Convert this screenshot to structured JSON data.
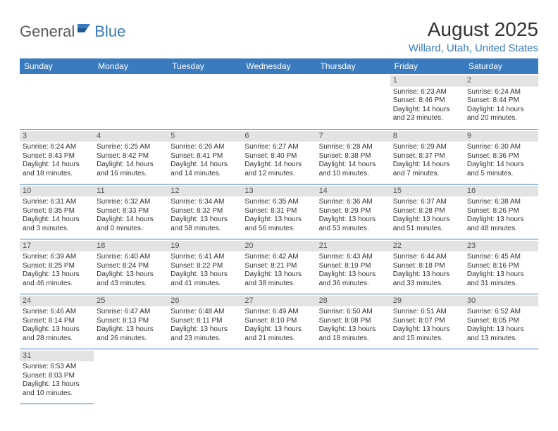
{
  "brand": {
    "part1": "General",
    "part2": "Blue"
  },
  "title": "August 2025",
  "location": "Willard, Utah, United States",
  "colors": {
    "header_bg": "#3a7bbf",
    "header_fg": "#ffffff",
    "daynum_bg": "#e3e3e3",
    "text": "#333333",
    "rule": "#3a7bbf",
    "logo_gray": "#5a5a5a",
    "logo_blue": "#3a7bbf"
  },
  "weekdays": [
    "Sunday",
    "Monday",
    "Tuesday",
    "Wednesday",
    "Thursday",
    "Friday",
    "Saturday"
  ],
  "first_weekday_index": 5,
  "days": [
    {
      "n": "1",
      "sunrise": "6:23 AM",
      "sunset": "8:46 PM",
      "daylight": "14 hours and 23 minutes."
    },
    {
      "n": "2",
      "sunrise": "6:24 AM",
      "sunset": "8:44 PM",
      "daylight": "14 hours and 20 minutes."
    },
    {
      "n": "3",
      "sunrise": "6:24 AM",
      "sunset": "8:43 PM",
      "daylight": "14 hours and 18 minutes."
    },
    {
      "n": "4",
      "sunrise": "6:25 AM",
      "sunset": "8:42 PM",
      "daylight": "14 hours and 16 minutes."
    },
    {
      "n": "5",
      "sunrise": "6:26 AM",
      "sunset": "8:41 PM",
      "daylight": "14 hours and 14 minutes."
    },
    {
      "n": "6",
      "sunrise": "6:27 AM",
      "sunset": "8:40 PM",
      "daylight": "14 hours and 12 minutes."
    },
    {
      "n": "7",
      "sunrise": "6:28 AM",
      "sunset": "8:38 PM",
      "daylight": "14 hours and 10 minutes."
    },
    {
      "n": "8",
      "sunrise": "6:29 AM",
      "sunset": "8:37 PM",
      "daylight": "14 hours and 7 minutes."
    },
    {
      "n": "9",
      "sunrise": "6:30 AM",
      "sunset": "8:36 PM",
      "daylight": "14 hours and 5 minutes."
    },
    {
      "n": "10",
      "sunrise": "6:31 AM",
      "sunset": "8:35 PM",
      "daylight": "14 hours and 3 minutes."
    },
    {
      "n": "11",
      "sunrise": "6:32 AM",
      "sunset": "8:33 PM",
      "daylight": "14 hours and 0 minutes."
    },
    {
      "n": "12",
      "sunrise": "6:34 AM",
      "sunset": "8:32 PM",
      "daylight": "13 hours and 58 minutes."
    },
    {
      "n": "13",
      "sunrise": "6:35 AM",
      "sunset": "8:31 PM",
      "daylight": "13 hours and 56 minutes."
    },
    {
      "n": "14",
      "sunrise": "6:36 AM",
      "sunset": "8:29 PM",
      "daylight": "13 hours and 53 minutes."
    },
    {
      "n": "15",
      "sunrise": "6:37 AM",
      "sunset": "8:28 PM",
      "daylight": "13 hours and 51 minutes."
    },
    {
      "n": "16",
      "sunrise": "6:38 AM",
      "sunset": "8:26 PM",
      "daylight": "13 hours and 48 minutes."
    },
    {
      "n": "17",
      "sunrise": "6:39 AM",
      "sunset": "8:25 PM",
      "daylight": "13 hours and 46 minutes."
    },
    {
      "n": "18",
      "sunrise": "6:40 AM",
      "sunset": "8:24 PM",
      "daylight": "13 hours and 43 minutes."
    },
    {
      "n": "19",
      "sunrise": "6:41 AM",
      "sunset": "8:22 PM",
      "daylight": "13 hours and 41 minutes."
    },
    {
      "n": "20",
      "sunrise": "6:42 AM",
      "sunset": "8:21 PM",
      "daylight": "13 hours and 38 minutes."
    },
    {
      "n": "21",
      "sunrise": "6:43 AM",
      "sunset": "8:19 PM",
      "daylight": "13 hours and 36 minutes."
    },
    {
      "n": "22",
      "sunrise": "6:44 AM",
      "sunset": "8:18 PM",
      "daylight": "13 hours and 33 minutes."
    },
    {
      "n": "23",
      "sunrise": "6:45 AM",
      "sunset": "8:16 PM",
      "daylight": "13 hours and 31 minutes."
    },
    {
      "n": "24",
      "sunrise": "6:46 AM",
      "sunset": "8:14 PM",
      "daylight": "13 hours and 28 minutes."
    },
    {
      "n": "25",
      "sunrise": "6:47 AM",
      "sunset": "8:13 PM",
      "daylight": "13 hours and 26 minutes."
    },
    {
      "n": "26",
      "sunrise": "6:48 AM",
      "sunset": "8:11 PM",
      "daylight": "13 hours and 23 minutes."
    },
    {
      "n": "27",
      "sunrise": "6:49 AM",
      "sunset": "8:10 PM",
      "daylight": "13 hours and 21 minutes."
    },
    {
      "n": "28",
      "sunrise": "6:50 AM",
      "sunset": "8:08 PM",
      "daylight": "13 hours and 18 minutes."
    },
    {
      "n": "29",
      "sunrise": "6:51 AM",
      "sunset": "8:07 PM",
      "daylight": "13 hours and 15 minutes."
    },
    {
      "n": "30",
      "sunrise": "6:52 AM",
      "sunset": "8:05 PM",
      "daylight": "13 hours and 13 minutes."
    },
    {
      "n": "31",
      "sunrise": "6:53 AM",
      "sunset": "8:03 PM",
      "daylight": "13 hours and 10 minutes."
    }
  ],
  "labels": {
    "sunrise": "Sunrise:",
    "sunset": "Sunset:",
    "daylight": "Daylight:"
  }
}
